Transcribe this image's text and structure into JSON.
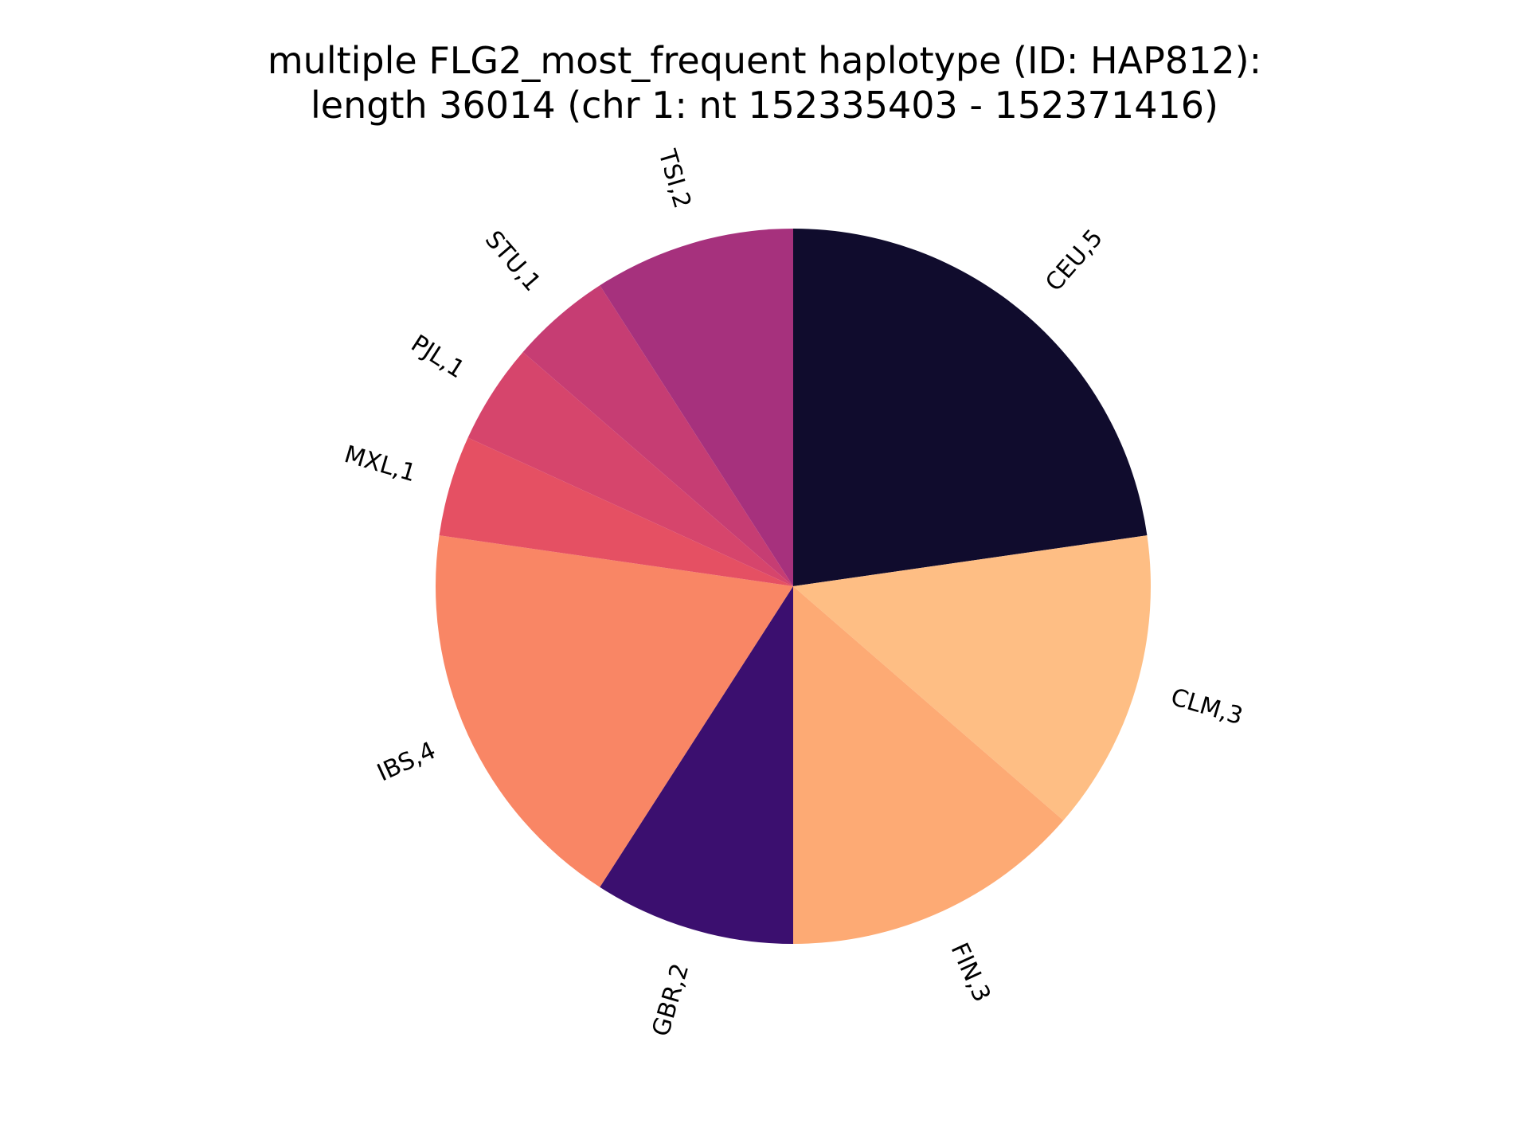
{
  "chart_data": {
    "type": "pie",
    "title_line1": "multiple FLG2_most_frequent haplotype (ID: HAP812):",
    "title_line2": "length 36014 (chr 1: nt 152335403 - 152371416)",
    "start_angle_deg": 90,
    "direction": "clockwise",
    "slices": [
      {
        "category": "CEU",
        "value": 5,
        "label": "CEU,5",
        "color": "#100c2d"
      },
      {
        "category": "CLM",
        "value": 3,
        "label": "CLM,3",
        "color": "#febe84"
      },
      {
        "category": "FIN",
        "value": 3,
        "label": "FIN,3",
        "color": "#fdaa74"
      },
      {
        "category": "GBR",
        "value": 2,
        "label": "GBR,2",
        "color": "#3b0f6f"
      },
      {
        "category": "IBS",
        "value": 4,
        "label": "IBS,4",
        "color": "#f98665"
      },
      {
        "category": "MXL",
        "value": 1,
        "label": "MXL,1",
        "color": "#e55063"
      },
      {
        "category": "PJL",
        "value": 1,
        "label": "PJL,1",
        "color": "#d6456c"
      },
      {
        "category": "STU",
        "value": 1,
        "label": "STU,1",
        "color": "#c63d73"
      },
      {
        "category": "TSI",
        "value": 2,
        "label": "TSI,2",
        "color": "#a6317d"
      }
    ]
  }
}
